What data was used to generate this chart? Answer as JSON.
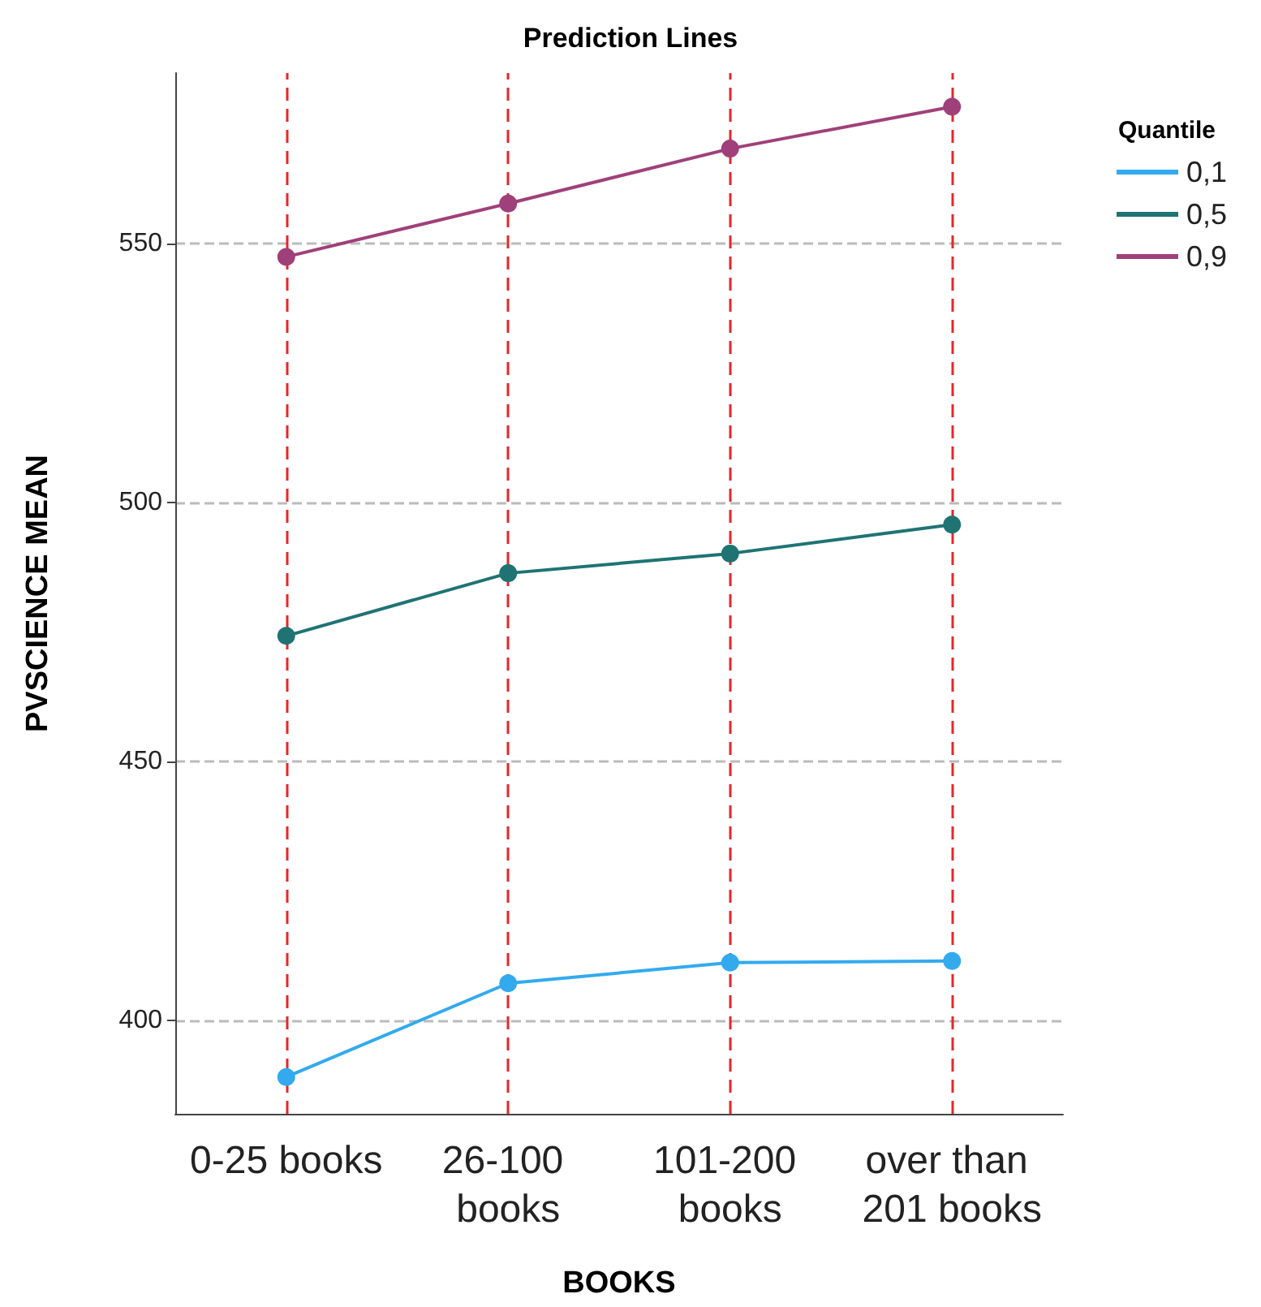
{
  "chart_data": {
    "type": "line",
    "title": "Prediction Lines",
    "xlabel": "BOOKS",
    "ylabel": "PVSCIENCE MEAN",
    "legend_title": "Quantile",
    "categories": [
      "0-25 books",
      "26-100 books",
      "101-200 books",
      "over than 201 books"
    ],
    "series": [
      {
        "name": "0,1",
        "color": "#33aaee",
        "values": [
          389.1,
          407.2,
          411.2,
          411.5
        ]
      },
      {
        "name": "0,5",
        "color": "#1f7373",
        "values": [
          474.3,
          486.4,
          490.2,
          495.8
        ]
      },
      {
        "name": "0,9",
        "color": "#a0407a",
        "values": [
          547.5,
          557.8,
          568.4,
          576.5
        ]
      }
    ],
    "ylim": [
      382,
      583
    ],
    "yticks": [
      400,
      450,
      500,
      550
    ],
    "grid": "y",
    "legend": "top right",
    "marker": "circle",
    "line_style": "solid",
    "ref_lines": [
      {
        "axis": "x",
        "value": "0-25 books",
        "color": "#e8262a",
        "line_style": "dashed"
      },
      {
        "axis": "x",
        "value": "26-100 books",
        "color": "#e8262a",
        "line_style": "dashed"
      },
      {
        "axis": "x",
        "value": "101-200 books",
        "color": "#e8262a",
        "line_style": "dashed"
      },
      {
        "axis": "x",
        "value": "over than 201 books",
        "color": "#e8262a",
        "line_style": "dashed"
      }
    ]
  }
}
